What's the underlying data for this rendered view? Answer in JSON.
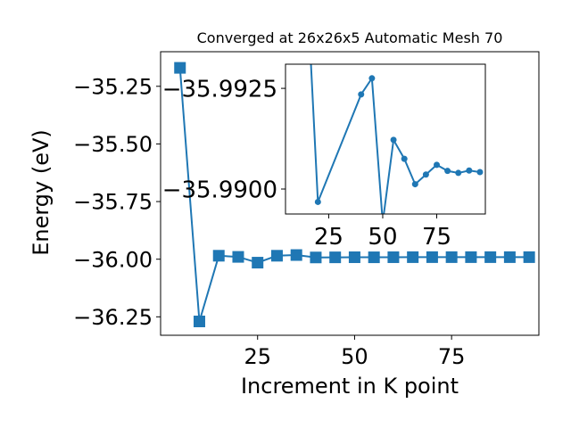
{
  "chart_data": [
    {
      "type": "line",
      "title": "Converged at 26x26x5 Automatic Mesh 70",
      "xlabel": "Increment in K point",
      "ylabel": "Energy (eV)",
      "xlim": [
        0,
        97.5
      ],
      "ylim": [
        -36.33,
        -35.1
      ],
      "xticks": [
        25,
        50,
        75
      ],
      "xtick_labels": [
        "25",
        "50",
        "75"
      ],
      "yticks": [
        -36.25,
        -36.0,
        -35.75,
        -35.5,
        -35.25
      ],
      "ytick_labels": [
        "−36.25",
        "−36.00",
        "−35.75",
        "−35.50",
        "−35.25"
      ],
      "marker": "square",
      "color": "#1f77b4",
      "grid": false,
      "series": [
        {
          "x": [
            5,
            10,
            15,
            20,
            25,
            30,
            35,
            40,
            45,
            50,
            55,
            60,
            65,
            70,
            75,
            80,
            85,
            90,
            95
          ],
          "y": [
            -35.17,
            -36.27,
            -35.985,
            -35.99,
            -36.015,
            -35.985,
            -35.982,
            -35.9925,
            -35.992,
            -35.9915,
            -35.9918,
            -35.9914,
            -35.9912,
            -35.9911,
            -35.9911,
            -35.9911,
            -35.9911,
            -35.9911,
            -35.9911
          ]
        }
      ]
    },
    {
      "type": "line",
      "title": "",
      "xlabel": "",
      "ylabel": "",
      "xlim": [
        5,
        97.5
      ],
      "ylim": [
        -35.98938,
        -35.9931
      ],
      "xticks": [
        25,
        50,
        75
      ],
      "xtick_labels": [
        "25",
        "50",
        "75"
      ],
      "yticks": [
        -35.99,
        -35.9925
      ],
      "ytick_labels": [
        "−35.9900",
        "−35.9925"
      ],
      "marker": "circle",
      "color": "#1f77b4",
      "grid": false,
      "series": [
        {
          "x": [
            15,
            20,
            40,
            45,
            50,
            55,
            60,
            65,
            70,
            75,
            80,
            85,
            90,
            95
          ],
          "y": [
            -35.995,
            -35.98968,
            -35.99235,
            -35.99275,
            -35.98917,
            -35.99122,
            -35.99075,
            -35.99012,
            -35.99036,
            -35.9906,
            -35.99045,
            -35.9904,
            -35.99046,
            -35.99042
          ]
        }
      ]
    }
  ]
}
